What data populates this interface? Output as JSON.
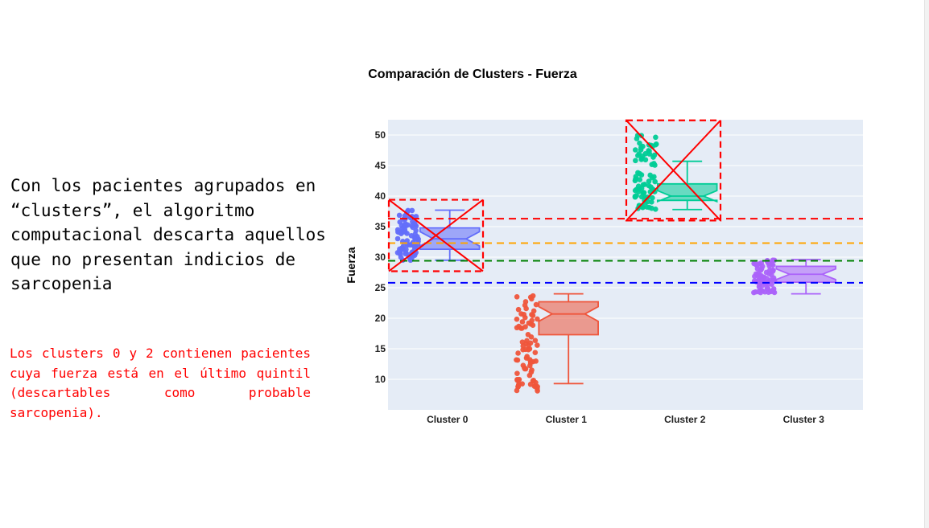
{
  "slide": {
    "main_text": "Con los pacientes agrupados en “clusters”, el algoritmo computacional descarta aquellos que no presentan indicios de sarcopenia",
    "note_text": "Los clusters 0 y 2 contienen pacientes cuya fuerza está en el último quintil (descartables como probable sarcopenia).",
    "note_color": "#ff0000"
  },
  "chart_data": {
    "type": "box",
    "title": "Comparación de Clusters - Fuerza",
    "xlabel": "",
    "ylabel": "Fuerza",
    "ylim": [
      5,
      52.5
    ],
    "yticks": [
      10,
      15,
      20,
      25,
      30,
      35,
      40,
      45,
      50
    ],
    "grid": true,
    "notched": true,
    "points": "all",
    "categories": [
      "Cluster 0",
      "Cluster 1",
      "Cluster 2",
      "Cluster 3"
    ],
    "series": [
      {
        "category": "Cluster 0",
        "color": "#636efa",
        "min": 29.5,
        "q1": 31.3,
        "median": 33.0,
        "q3": 34.8,
        "max": 37.7,
        "points_min": 29.5,
        "points_max": 37.7,
        "crossed_out": true
      },
      {
        "category": "Cluster 1",
        "color": "#ef553b",
        "min": 9.3,
        "q1": 17.3,
        "median": 20.7,
        "q3": 22.7,
        "max": 24.0,
        "points_min": 8.0,
        "points_max": 23.9,
        "crossed_out": false
      },
      {
        "category": "Cluster 2",
        "color": "#00cc96",
        "min": 37.8,
        "q1": 39.3,
        "median": 40.0,
        "q3": 42.0,
        "max": 45.7,
        "points_min": 37.8,
        "points_max": 50.7,
        "crossed_out": true
      },
      {
        "category": "Cluster 3",
        "color": "#ab63fa",
        "min": 24.0,
        "q1": 25.9,
        "median": 27.2,
        "q3": 28.5,
        "max": 29.6,
        "points_min": 24.2,
        "points_max": 29.6,
        "crossed_out": false
      }
    ],
    "reference_lines": [
      {
        "y": 36.3,
        "color": "#ff0000"
      },
      {
        "y": 32.3,
        "color": "#ffa500"
      },
      {
        "y": 29.4,
        "color": "#008000"
      },
      {
        "y": 25.8,
        "color": "#0000ff"
      }
    ],
    "annotation_color": "#ff0000",
    "plot_background": "#e5ecf6"
  }
}
